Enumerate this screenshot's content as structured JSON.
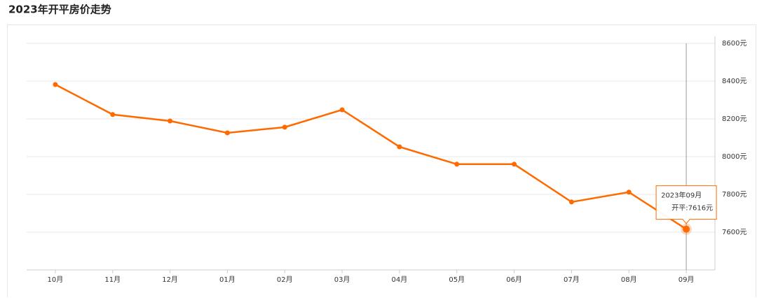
{
  "chart_data": {
    "type": "line",
    "title": "2023年开平房价走势",
    "categories": [
      "10月",
      "11月",
      "12月",
      "01月",
      "02月",
      "03月",
      "04月",
      "05月",
      "06月",
      "07月",
      "08月",
      "09月"
    ],
    "series": [
      {
        "name": "开平",
        "color": "#ff6a00",
        "values": [
          8382,
          8223,
          8189,
          8126,
          8156,
          8248,
          8052,
          7960,
          7960,
          7760,
          7812,
          7616
        ]
      }
    ],
    "ylim": [
      7400,
      8600
    ],
    "yticks": [
      {
        "value": 7600,
        "label": "7600元"
      },
      {
        "value": 7800,
        "label": "7800元"
      },
      {
        "value": 8000,
        "label": "8000元"
      },
      {
        "value": 8200,
        "label": "8200元"
      },
      {
        "value": 8400,
        "label": "8400元"
      },
      {
        "value": 8600,
        "label": "8600元"
      }
    ],
    "grid": true,
    "tooltip": {
      "title": "2023年09月",
      "text": "开平:7616元"
    }
  }
}
